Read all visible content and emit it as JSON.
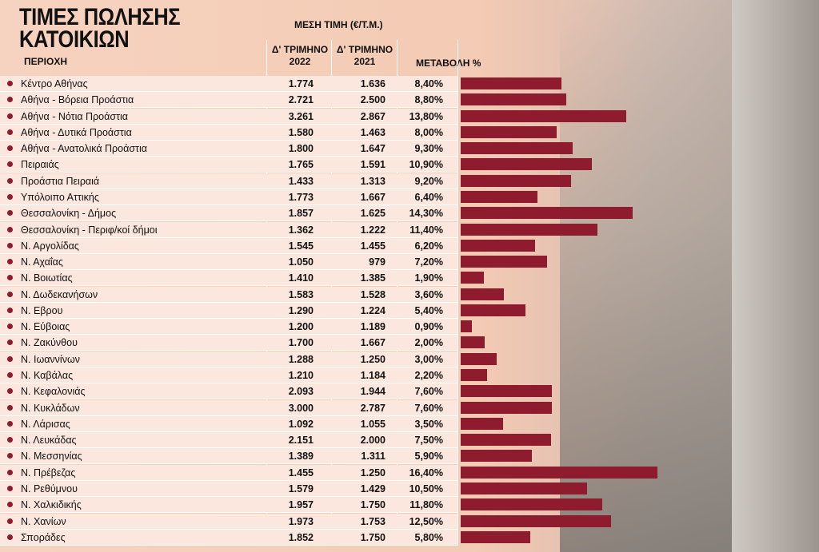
{
  "header": {
    "title_lines": [
      "ΤΙΜΕΣ ΠΩΛΗΣΗΣ",
      "ΚΑΤΟΙΚΙΩΝ"
    ],
    "region_label": "ΠΕΡΙΟΧΗ",
    "price_label": "ΜΕΣΗ ΤΙΜΗ  (€/Τ.Μ.)",
    "col_2022": [
      "Δ' ΤΡΙΜΗΝΟ",
      "2022"
    ],
    "col_2021": [
      "Δ' ΤΡΙΜΗΝΟ",
      "2021"
    ],
    "change_label": "ΜΕΤΑΒΟΛΗ %"
  },
  "rows": [
    {
      "region": "Κέντρο Αθήνας",
      "price_2022": "1.774",
      "price_2021": "1.636",
      "change": {
        "value": 8.4,
        "label": "8,40%"
      }
    },
    {
      "region": "Αθήνα - Βόρεια Προάστια",
      "price_2022": "2.721",
      "price_2021": "2.500",
      "change": {
        "value": 8.8,
        "label": "8,80%"
      }
    },
    {
      "region": "Αθήνα - Νότια Προάστια",
      "price_2022": "3.261",
      "price_2021": "2.867",
      "change": {
        "value": 13.8,
        "label": "13,80%"
      }
    },
    {
      "region": "Αθήνα - Δυτικά Προάστια",
      "price_2022": "1.580",
      "price_2021": "1.463",
      "change": {
        "value": 8.0,
        "label": "8,00%"
      }
    },
    {
      "region": "Αθήνα - Ανατολικά Προάστια",
      "price_2022": "1.800",
      "price_2021": "1.647",
      "change": {
        "value": 9.3,
        "label": "9,30%"
      }
    },
    {
      "region": "Πειραιάς",
      "price_2022": "1.765",
      "price_2021": "1.591",
      "change": {
        "value": 10.9,
        "label": "10,90%"
      }
    },
    {
      "region": "Προάστια Πειραιά",
      "price_2022": "1.433",
      "price_2021": "1.313",
      "change": {
        "value": 9.2,
        "label": "9,20%"
      }
    },
    {
      "region": "Υπόλοιπο Αττικής",
      "price_2022": "1.773",
      "price_2021": "1.667",
      "change": {
        "value": 6.4,
        "label": "6,40%"
      }
    },
    {
      "region": "Θεσσαλονίκη - Δήμος",
      "price_2022": "1.857",
      "price_2021": "1.625",
      "change": {
        "value": 14.3,
        "label": "14,30%"
      }
    },
    {
      "region": "Θεσσαλονίκη - Περιφ/κοί δήμοι",
      "price_2022": "1.362",
      "price_2021": "1.222",
      "change": {
        "value": 11.4,
        "label": "11,40%"
      }
    },
    {
      "region": "Ν. Αργολίδας",
      "price_2022": "1.545",
      "price_2021": "1.455",
      "change": {
        "value": 6.2,
        "label": "6,20%"
      }
    },
    {
      "region": "Ν. Αχαΐας",
      "price_2022": "1.050",
      "price_2021": "979",
      "change": {
        "value": 7.2,
        "label": "7,20%"
      }
    },
    {
      "region": "Ν. Βοιωτίας",
      "price_2022": "1.410",
      "price_2021": "1.385",
      "change": {
        "value": 1.9,
        "label": "1,90%"
      }
    },
    {
      "region": "Ν. Δωδεκανήσων",
      "price_2022": "1.583",
      "price_2021": "1.528",
      "change": {
        "value": 3.6,
        "label": "3,60%"
      }
    },
    {
      "region": "Ν. Εβρου",
      "price_2022": "1.290",
      "price_2021": "1.224",
      "change": {
        "value": 5.4,
        "label": "5,40%"
      }
    },
    {
      "region": "Ν. Εύβοιας",
      "price_2022": "1.200",
      "price_2021": "1.189",
      "change": {
        "value": 0.9,
        "label": "0,90%"
      }
    },
    {
      "region": "Ν. Ζακύνθου",
      "price_2022": "1.700",
      "price_2021": "1.667",
      "change": {
        "value": 2.0,
        "label": "2,00%"
      }
    },
    {
      "region": "Ν. Ιωαννίνων",
      "price_2022": "1.288",
      "price_2021": "1.250",
      "change": {
        "value": 3.0,
        "label": "3,00%"
      }
    },
    {
      "region": "Ν. Καβάλας",
      "price_2022": "1.210",
      "price_2021": "1.184",
      "change": {
        "value": 2.2,
        "label": "2,20%"
      }
    },
    {
      "region": "Ν. Κεφαλονιάς",
      "price_2022": "2.093",
      "price_2021": "1.944",
      "change": {
        "value": 7.6,
        "label": "7,60%"
      }
    },
    {
      "region": "Ν. Κυκλάδων",
      "price_2022": "3.000",
      "price_2021": "2.787",
      "change": {
        "value": 7.6,
        "label": "7,60%"
      }
    },
    {
      "region": "Ν. Λάρισας",
      "price_2022": "1.092",
      "price_2021": "1.055",
      "change": {
        "value": 3.5,
        "label": "3,50%"
      }
    },
    {
      "region": "Ν. Λευκάδας",
      "price_2022": "2.151",
      "price_2021": "2.000",
      "change": {
        "value": 7.5,
        "label": "7,50%"
      }
    },
    {
      "region": "Ν. Μεσσηνίας",
      "price_2022": "1.389",
      "price_2021": "1.311",
      "change": {
        "value": 5.9,
        "label": "5,90%"
      }
    },
    {
      "region": "Ν. Πρέβεζας",
      "price_2022": "1.455",
      "price_2021": "1.250",
      "change": {
        "value": 16.4,
        "label": "16,40%"
      }
    },
    {
      "region": "Ν. Ρεθύμνου",
      "price_2022": "1.579",
      "price_2021": "1.429",
      "change": {
        "value": 10.5,
        "label": "10,50%"
      }
    },
    {
      "region": "Ν. Χαλκιδικής",
      "price_2022": "1.957",
      "price_2021": "1.750",
      "change": {
        "value": 11.8,
        "label": "11,80%"
      }
    },
    {
      "region": "Ν. Χανίων",
      "price_2022": "1.973",
      "price_2021": "1.753",
      "change": {
        "value": 12.5,
        "label": "12,50%"
      }
    },
    {
      "region": "Σπoράδες",
      "price_2022": "1.852",
      "price_2021": "1.750",
      "change": {
        "value": 5.8,
        "label": "5,80%"
      }
    }
  ]
}
